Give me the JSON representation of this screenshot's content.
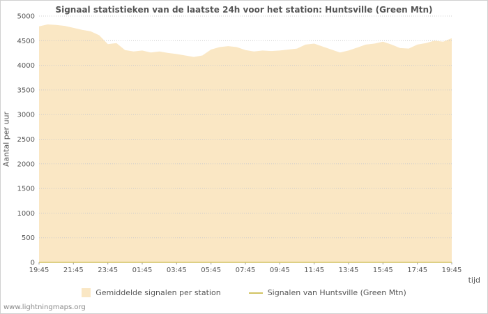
{
  "page": {
    "footer": "www.lightningmaps.org"
  },
  "chart_data": {
    "type": "area",
    "title": "Signaal statistieken van de laatste 24h voor het station: Huntsville (Green Mtn)",
    "ylabel": "Aantal per uur",
    "xlabel": "tijd",
    "ylim": [
      0,
      5000
    ],
    "ytick_step": 500,
    "grid": true,
    "legend_position": "bottom",
    "x_ticks": [
      "19:45",
      "21:45",
      "23:45",
      "01:45",
      "03:45",
      "05:45",
      "07:45",
      "09:45",
      "11:45",
      "13:45",
      "15:45",
      "17:45",
      "19:45"
    ],
    "colors": {
      "area": "#fae7c4",
      "line": "#d2c463",
      "grid": "#cccccc",
      "axis": "#999999",
      "text": "#555555"
    },
    "series": [
      {
        "name": "Gemiddelde signalen per station",
        "type": "area",
        "color": "#fae7c4",
        "values": [
          4790,
          4830,
          4820,
          4800,
          4760,
          4720,
          4690,
          4610,
          4430,
          4450,
          4310,
          4280,
          4300,
          4260,
          4280,
          4250,
          4230,
          4200,
          4170,
          4200,
          4320,
          4370,
          4390,
          4370,
          4310,
          4280,
          4300,
          4290,
          4300,
          4320,
          4340,
          4420,
          4440,
          4380,
          4320,
          4260,
          4300,
          4360,
          4420,
          4440,
          4480,
          4420,
          4350,
          4340,
          4420,
          4450,
          4500,
          4480,
          4550
        ]
      },
      {
        "name": "Signalen van Huntsville (Green Mtn)",
        "type": "line",
        "color": "#d2c463",
        "values": [
          0,
          0,
          0,
          0,
          0,
          0,
          0,
          0,
          0,
          0,
          0,
          0,
          0,
          0,
          0,
          0,
          0,
          0,
          0,
          0,
          0,
          0,
          0,
          0,
          0,
          0,
          0,
          0,
          0,
          0,
          0,
          0,
          0,
          0,
          0,
          0,
          0,
          0,
          0,
          0,
          0,
          0,
          0,
          0,
          0,
          0,
          0,
          0,
          0
        ]
      }
    ]
  }
}
